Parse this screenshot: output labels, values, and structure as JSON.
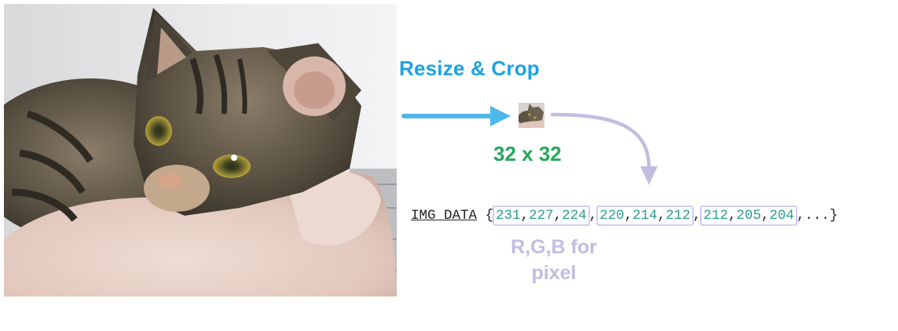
{
  "diagram": {
    "step_label": "Resize & Crop",
    "size_label": "32 x 32",
    "code": {
      "keyword": "IMG_DATA",
      "open": "{",
      "pixels": [
        [
          "231",
          "227",
          "224"
        ],
        [
          "220",
          "214",
          "212"
        ],
        [
          "212",
          "205",
          "204"
        ]
      ],
      "tail": ",...}"
    },
    "pixel_note_line1": "R,G,B for",
    "pixel_note_line2": "pixel",
    "colors": {
      "step_label": "#1aa3e0",
      "size_label": "#25a85a",
      "pixel_note": "#c3bce0",
      "blue_arrow": "#4db8ea",
      "purple_arrow": "#c3bce0",
      "numbers": "#2a9d8f"
    },
    "images": {
      "source": "tabby-kitten-photo",
      "thumbnail": "tabby-kitten-thumbnail"
    }
  }
}
